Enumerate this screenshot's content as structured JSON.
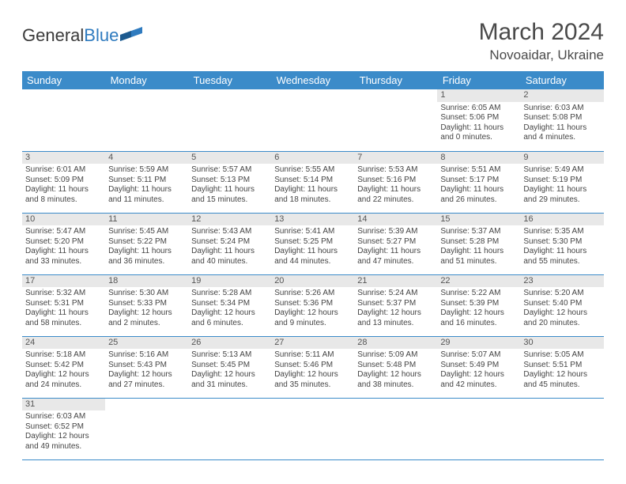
{
  "brand": {
    "general": "General",
    "blue": "Blue"
  },
  "title": "March 2024",
  "location": "Novoaidar, Ukraine",
  "header_bg": "#3b8bc9",
  "daynum_bg": "#e8e8e8",
  "days": [
    "Sunday",
    "Monday",
    "Tuesday",
    "Wednesday",
    "Thursday",
    "Friday",
    "Saturday"
  ],
  "weeks": [
    [
      null,
      null,
      null,
      null,
      null,
      {
        "n": "1",
        "sr": "Sunrise: 6:05 AM",
        "ss": "Sunset: 5:06 PM",
        "dl1": "Daylight: 11 hours",
        "dl2": "and 0 minutes."
      },
      {
        "n": "2",
        "sr": "Sunrise: 6:03 AM",
        "ss": "Sunset: 5:08 PM",
        "dl1": "Daylight: 11 hours",
        "dl2": "and 4 minutes."
      }
    ],
    [
      {
        "n": "3",
        "sr": "Sunrise: 6:01 AM",
        "ss": "Sunset: 5:09 PM",
        "dl1": "Daylight: 11 hours",
        "dl2": "and 8 minutes."
      },
      {
        "n": "4",
        "sr": "Sunrise: 5:59 AM",
        "ss": "Sunset: 5:11 PM",
        "dl1": "Daylight: 11 hours",
        "dl2": "and 11 minutes."
      },
      {
        "n": "5",
        "sr": "Sunrise: 5:57 AM",
        "ss": "Sunset: 5:13 PM",
        "dl1": "Daylight: 11 hours",
        "dl2": "and 15 minutes."
      },
      {
        "n": "6",
        "sr": "Sunrise: 5:55 AM",
        "ss": "Sunset: 5:14 PM",
        "dl1": "Daylight: 11 hours",
        "dl2": "and 18 minutes."
      },
      {
        "n": "7",
        "sr": "Sunrise: 5:53 AM",
        "ss": "Sunset: 5:16 PM",
        "dl1": "Daylight: 11 hours",
        "dl2": "and 22 minutes."
      },
      {
        "n": "8",
        "sr": "Sunrise: 5:51 AM",
        "ss": "Sunset: 5:17 PM",
        "dl1": "Daylight: 11 hours",
        "dl2": "and 26 minutes."
      },
      {
        "n": "9",
        "sr": "Sunrise: 5:49 AM",
        "ss": "Sunset: 5:19 PM",
        "dl1": "Daylight: 11 hours",
        "dl2": "and 29 minutes."
      }
    ],
    [
      {
        "n": "10",
        "sr": "Sunrise: 5:47 AM",
        "ss": "Sunset: 5:20 PM",
        "dl1": "Daylight: 11 hours",
        "dl2": "and 33 minutes."
      },
      {
        "n": "11",
        "sr": "Sunrise: 5:45 AM",
        "ss": "Sunset: 5:22 PM",
        "dl1": "Daylight: 11 hours",
        "dl2": "and 36 minutes."
      },
      {
        "n": "12",
        "sr": "Sunrise: 5:43 AM",
        "ss": "Sunset: 5:24 PM",
        "dl1": "Daylight: 11 hours",
        "dl2": "and 40 minutes."
      },
      {
        "n": "13",
        "sr": "Sunrise: 5:41 AM",
        "ss": "Sunset: 5:25 PM",
        "dl1": "Daylight: 11 hours",
        "dl2": "and 44 minutes."
      },
      {
        "n": "14",
        "sr": "Sunrise: 5:39 AM",
        "ss": "Sunset: 5:27 PM",
        "dl1": "Daylight: 11 hours",
        "dl2": "and 47 minutes."
      },
      {
        "n": "15",
        "sr": "Sunrise: 5:37 AM",
        "ss": "Sunset: 5:28 PM",
        "dl1": "Daylight: 11 hours",
        "dl2": "and 51 minutes."
      },
      {
        "n": "16",
        "sr": "Sunrise: 5:35 AM",
        "ss": "Sunset: 5:30 PM",
        "dl1": "Daylight: 11 hours",
        "dl2": "and 55 minutes."
      }
    ],
    [
      {
        "n": "17",
        "sr": "Sunrise: 5:32 AM",
        "ss": "Sunset: 5:31 PM",
        "dl1": "Daylight: 11 hours",
        "dl2": "and 58 minutes."
      },
      {
        "n": "18",
        "sr": "Sunrise: 5:30 AM",
        "ss": "Sunset: 5:33 PM",
        "dl1": "Daylight: 12 hours",
        "dl2": "and 2 minutes."
      },
      {
        "n": "19",
        "sr": "Sunrise: 5:28 AM",
        "ss": "Sunset: 5:34 PM",
        "dl1": "Daylight: 12 hours",
        "dl2": "and 6 minutes."
      },
      {
        "n": "20",
        "sr": "Sunrise: 5:26 AM",
        "ss": "Sunset: 5:36 PM",
        "dl1": "Daylight: 12 hours",
        "dl2": "and 9 minutes."
      },
      {
        "n": "21",
        "sr": "Sunrise: 5:24 AM",
        "ss": "Sunset: 5:37 PM",
        "dl1": "Daylight: 12 hours",
        "dl2": "and 13 minutes."
      },
      {
        "n": "22",
        "sr": "Sunrise: 5:22 AM",
        "ss": "Sunset: 5:39 PM",
        "dl1": "Daylight: 12 hours",
        "dl2": "and 16 minutes."
      },
      {
        "n": "23",
        "sr": "Sunrise: 5:20 AM",
        "ss": "Sunset: 5:40 PM",
        "dl1": "Daylight: 12 hours",
        "dl2": "and 20 minutes."
      }
    ],
    [
      {
        "n": "24",
        "sr": "Sunrise: 5:18 AM",
        "ss": "Sunset: 5:42 PM",
        "dl1": "Daylight: 12 hours",
        "dl2": "and 24 minutes."
      },
      {
        "n": "25",
        "sr": "Sunrise: 5:16 AM",
        "ss": "Sunset: 5:43 PM",
        "dl1": "Daylight: 12 hours",
        "dl2": "and 27 minutes."
      },
      {
        "n": "26",
        "sr": "Sunrise: 5:13 AM",
        "ss": "Sunset: 5:45 PM",
        "dl1": "Daylight: 12 hours",
        "dl2": "and 31 minutes."
      },
      {
        "n": "27",
        "sr": "Sunrise: 5:11 AM",
        "ss": "Sunset: 5:46 PM",
        "dl1": "Daylight: 12 hours",
        "dl2": "and 35 minutes."
      },
      {
        "n": "28",
        "sr": "Sunrise: 5:09 AM",
        "ss": "Sunset: 5:48 PM",
        "dl1": "Daylight: 12 hours",
        "dl2": "and 38 minutes."
      },
      {
        "n": "29",
        "sr": "Sunrise: 5:07 AM",
        "ss": "Sunset: 5:49 PM",
        "dl1": "Daylight: 12 hours",
        "dl2": "and 42 minutes."
      },
      {
        "n": "30",
        "sr": "Sunrise: 5:05 AM",
        "ss": "Sunset: 5:51 PM",
        "dl1": "Daylight: 12 hours",
        "dl2": "and 45 minutes."
      }
    ],
    [
      {
        "n": "31",
        "sr": "Sunrise: 6:03 AM",
        "ss": "Sunset: 6:52 PM",
        "dl1": "Daylight: 12 hours",
        "dl2": "and 49 minutes."
      },
      null,
      null,
      null,
      null,
      null,
      null
    ]
  ]
}
